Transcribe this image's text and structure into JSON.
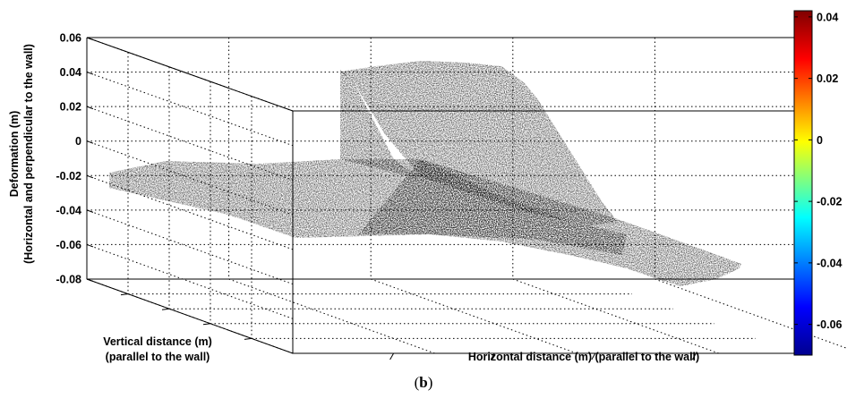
{
  "caption": {
    "open": "(",
    "letter": "b",
    "close": ")"
  },
  "chart_data": {
    "type": "surface",
    "zlabel_line1": "Deformation (m)",
    "zlabel_line2": "(Horizontal and perpendicular to the wall)",
    "ylabel_line1": "Vertical distance (m)",
    "ylabel_line2": "(parallel to the wall)",
    "xlabel": "Horizontal distance (m) (parallel to the wall)",
    "zlim": [
      -0.08,
      0.06
    ],
    "z_ticks": [
      "0.06",
      "0.04",
      "0.02",
      "0",
      "-0.02",
      "-0.04",
      "-0.06",
      "-0.08"
    ],
    "z_tick_values": [
      0.06,
      0.04,
      0.02,
      0,
      -0.02,
      -0.04,
      -0.06,
      -0.08
    ],
    "x_tick_labels_shown": false,
    "y_tick_labels_shown": false,
    "grid": true,
    "colormap": "jet",
    "colormap_stops": [
      "#00008f",
      "#0000ff",
      "#00ffff",
      "#ffff00",
      "#ff0000",
      "#800000"
    ],
    "colorbar": {
      "range": [
        -0.07,
        0.042
      ],
      "ticks": [
        "0.04",
        "0.02",
        "0",
        "-0.02",
        "-0.04",
        "-0.06"
      ],
      "tick_values": [
        0.04,
        0.02,
        0,
        -0.02,
        -0.04,
        -0.06
      ]
    },
    "surface_regions": [
      {
        "region": "flat plane (upper-left region of wall)",
        "deformation": -0.025
      },
      {
        "region": "raised block (upper-right region of wall)",
        "deformation": 0.04
      },
      {
        "region": "lower far-right corner",
        "deformation": -0.065
      }
    ]
  }
}
